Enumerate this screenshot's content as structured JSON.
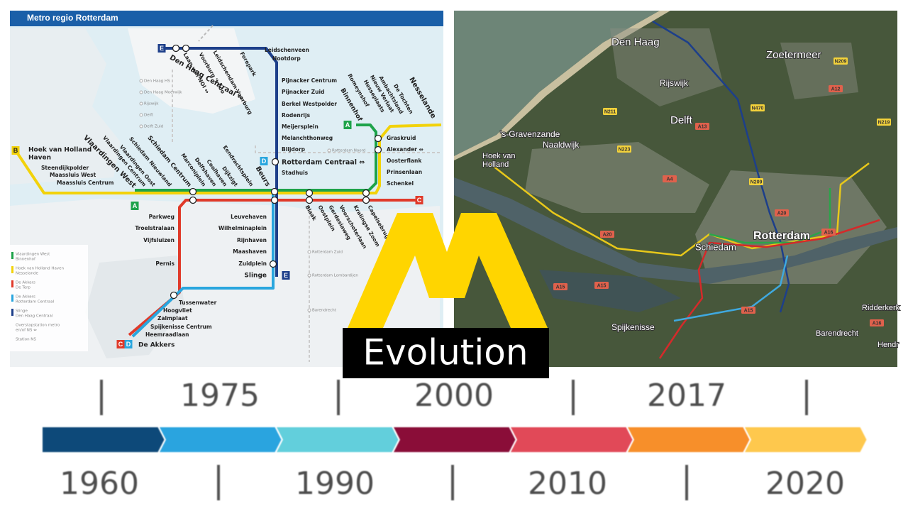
{
  "metro_map": {
    "title": "Metro regio Rotterdam",
    "stations": [
      "Leidschenveen",
      "Nootdorp",
      "Pijnacker Centrum",
      "Pijnacker Zuid",
      "Berkel Westpolder",
      "Rodenrijs",
      "Meijersplein",
      "Melanchthonweg",
      "Blijdorp",
      "Stadhuis",
      "Leuvehaven",
      "Wilhelminaplein",
      "Rijnhaven",
      "Maashaven",
      "Zuidplein",
      "Parkweg",
      "Troelstralaan",
      "Vijfsluizen",
      "Pernis",
      "Tussenwater",
      "Hoogvliet",
      "Zalmplaat",
      "Spijkenisse Centrum",
      "Heemraadlaan",
      "Steendijkpolder",
      "Maassluis West",
      "Maassluis Centrum",
      "Graskruid",
      "Alexander ⇔",
      "Oosterflank",
      "Prinsenlaan",
      "Schenkel",
      "Vlaardingen West",
      "Vlaardingen Centrum",
      "Vlaardingen Oost",
      "Schiedam Nieuwland",
      "Schiedam Centrum",
      "Marconiplein",
      "Delfshaven",
      "Coolhaven",
      "Dijkzigt",
      "Eendrachtsplein",
      "Beurs",
      "Blaak",
      "Oostplein",
      "Gerdesiaweg",
      "Voorschoterlaan",
      "Kralingse Zoom",
      "Capelsebrug",
      "Laan van NOI ⇔",
      "Voorburg 't Loo",
      "Leidschendam-Voorburg",
      "Forepark",
      "Binnenhof",
      "Romeynshof",
      "Hesseplaats",
      "Nieuw Verlaat",
      "Ambachtsland",
      "De Tochten",
      "Nesselande",
      "Den Haag Centraal ⇔",
      "Rotterdam Centraal ⇔",
      "Hoek van Holland",
      "Haven",
      "De Akkers",
      "Slinge"
    ],
    "ns_stations": [
      "Den Haag HS",
      "Den Haag Moerwijk",
      "Rijswijk",
      "Delft",
      "Delft Zuid",
      "Rotterdam Noord",
      "Rotterdam Zuid",
      "Rotterdam Lombardijen",
      "Barendrecht"
    ],
    "badges": [
      {
        "letter": "E",
        "color": "#1d3f8a"
      },
      {
        "letter": "D",
        "color": "#29a6de"
      },
      {
        "letter": "A",
        "color": "#1ea34a"
      },
      {
        "letter": "B",
        "color": "#f2d20a"
      },
      {
        "letter": "A",
        "color": "#1ea34a"
      },
      {
        "letter": "C",
        "color": "#e03a2a"
      },
      {
        "letter": "C",
        "color": "#e03a2a"
      },
      {
        "letter": "D",
        "color": "#29a6de"
      },
      {
        "letter": "E",
        "color": "#1d3f8a"
      }
    ],
    "legend": [
      {
        "color": "#1ea34a",
        "lines": [
          "Vlaardingen West",
          "Binnenhof"
        ]
      },
      {
        "color": "#f2d20a",
        "lines": [
          "Hoek van Holland Haven",
          "Nesselande"
        ]
      },
      {
        "color": "#e03a2a",
        "lines": [
          "De Akkers",
          "De Terp"
        ]
      },
      {
        "color": "#29a6de",
        "lines": [
          "De Akkers",
          "Rotterdam Centraal"
        ]
      },
      {
        "color": "#1d3f8a",
        "lines": [
          "Slinge",
          "Den Haag Centraal"
        ]
      },
      {
        "color": null,
        "lines": [
          "Overstapstation metro",
          "en/of NS ⇔"
        ]
      },
      {
        "color": null,
        "lines": [
          "Station NS"
        ]
      }
    ]
  },
  "satellite_map": {
    "places": [
      "Den Haag",
      "Zoetermeer",
      "Rijswijk",
      "Delft",
      "'s-Gravenzande",
      "Naaldwijk",
      "Hoek van",
      "Holland",
      "Schiedam",
      "Rotterdam",
      "Spijkenisse",
      "Barendrecht",
      "Ridderkerk",
      "Hendr"
    ],
    "roads": [
      "N209",
      "A12",
      "N470",
      "N219",
      "A13",
      "N211",
      "N223",
      "A4",
      "N209",
      "A20",
      "A20",
      "A16",
      "A15",
      "A15",
      "A15",
      "A16"
    ]
  },
  "logo": {
    "text": "Evolution"
  },
  "timeline": {
    "top_years": [
      "1975",
      "2000",
      "2017"
    ],
    "bottom_years": [
      "1960",
      "1990",
      "2010",
      "2020"
    ],
    "colors": [
      "#0d4a79",
      "#29a4df",
      "#62cfdc",
      "#8a0f37",
      "#e14a59",
      "#f78f2b",
      "#fec84d"
    ]
  }
}
